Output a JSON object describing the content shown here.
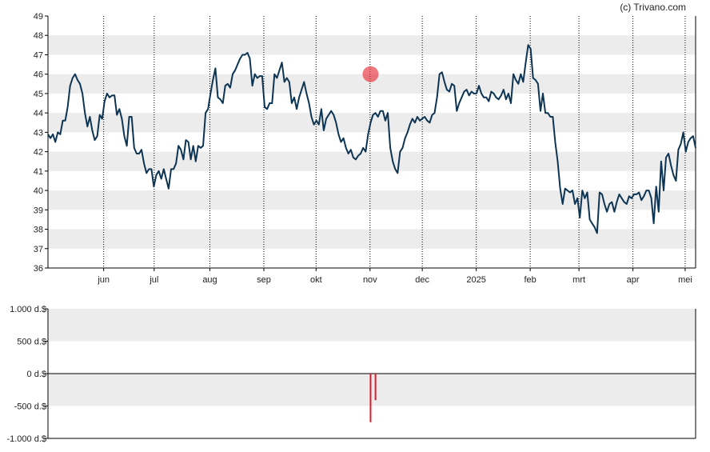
{
  "copyright": "(c) Trivano.com",
  "colors": {
    "line": "#0d3553",
    "band": "#ececec",
    "marker": "#e8303a",
    "bar": "#e01a2a",
    "axis": "#000000",
    "vgrid": "#000000"
  },
  "chart_data": [
    {
      "type": "line",
      "title": "",
      "xlabel": "",
      "ylabel": "",
      "ylim": [
        36,
        49
      ],
      "y_ticks": [
        "36",
        "37",
        "38",
        "39",
        "40",
        "41",
        "42",
        "43",
        "44",
        "45",
        "46",
        "47",
        "48",
        "49"
      ],
      "x_range_days": [
        0,
        372
      ],
      "month_ticks": [
        {
          "label": "jun",
          "day": 32
        },
        {
          "label": "jul",
          "day": 61
        },
        {
          "label": "aug",
          "day": 93
        },
        {
          "label": "sep",
          "day": 124
        },
        {
          "label": "okt",
          "day": 154
        },
        {
          "label": "nov",
          "day": 185
        },
        {
          "label": "dec",
          "day": 215
        },
        {
          "label": "2025",
          "day": 246
        },
        {
          "label": "feb",
          "day": 277
        },
        {
          "label": "mrt",
          "day": 305
        },
        {
          "label": "apr",
          "day": 336
        },
        {
          "label": "mei",
          "day": 366
        }
      ],
      "grid": "alternating horizontal bands, dotted vertical month lines",
      "series": [
        {
          "values": [
            [
              0,
              42.9
            ],
            [
              1,
              42.7
            ],
            [
              2,
              42.9
            ],
            [
              3,
              42.5
            ],
            [
              4,
              43.0
            ],
            [
              5,
              42.9
            ],
            [
              6,
              43.6
            ],
            [
              7,
              43.6
            ],
            [
              8,
              44.3
            ],
            [
              9,
              45.4
            ],
            [
              10,
              45.8
            ],
            [
              11,
              46.0
            ],
            [
              12,
              45.7
            ],
            [
              13,
              45.5
            ],
            [
              14,
              45.0
            ],
            [
              15,
              44.0
            ],
            [
              16,
              43.3
            ],
            [
              17,
              43.8
            ],
            [
              18,
              43.1
            ],
            [
              19,
              42.6
            ],
            [
              20,
              42.8
            ],
            [
              21,
              43.9
            ],
            [
              22,
              43.7
            ],
            [
              23,
              44.6
            ],
            [
              24,
              45.0
            ],
            [
              25,
              44.8
            ],
            [
              26,
              44.9
            ],
            [
              27,
              44.9
            ],
            [
              28,
              43.9
            ],
            [
              29,
              44.2
            ],
            [
              30,
              43.7
            ],
            [
              31,
              42.8
            ],
            [
              32,
              42.3
            ],
            [
              33,
              43.8
            ],
            [
              34,
              43.8
            ],
            [
              35,
              42.2
            ],
            [
              36,
              41.9
            ],
            [
              37,
              41.9
            ],
            [
              38,
              42.1
            ],
            [
              39,
              41.4
            ],
            [
              40,
              40.9
            ],
            [
              41,
              41.1
            ],
            [
              42,
              41.1
            ],
            [
              43,
              40.2
            ],
            [
              44,
              40.8
            ],
            [
              45,
              41.0
            ],
            [
              46,
              40.6
            ],
            [
              47,
              41.1
            ],
            [
              48,
              40.6
            ],
            [
              49,
              40.1
            ],
            [
              50,
              41.1
            ],
            [
              51,
              41.1
            ],
            [
              52,
              41.4
            ],
            [
              53,
              42.3
            ],
            [
              54,
              42.1
            ],
            [
              55,
              41.6
            ],
            [
              56,
              42.6
            ],
            [
              57,
              42.5
            ],
            [
              58,
              41.6
            ],
            [
              59,
              42.3
            ],
            [
              60,
              41.5
            ],
            [
              61,
              42.3
            ],
            [
              62,
              42.2
            ],
            [
              63,
              42.3
            ],
            [
              64,
              44.0
            ],
            [
              65,
              44.2
            ],
            [
              66,
              45.0
            ],
            [
              67,
              45.7
            ],
            [
              68,
              46.3
            ],
            [
              69,
              44.8
            ],
            [
              70,
              44.7
            ],
            [
              71,
              44.5
            ],
            [
              72,
              45.4
            ],
            [
              73,
              45.5
            ],
            [
              74,
              45.3
            ],
            [
              75,
              46.0
            ],
            [
              76,
              46.2
            ],
            [
              77,
              46.5
            ],
            [
              78,
              46.8
            ],
            [
              79,
              47.0
            ],
            [
              80,
              47.0
            ],
            [
              81,
              47.1
            ],
            [
              82,
              46.8
            ],
            [
              83,
              45.4
            ],
            [
              84,
              46.0
            ],
            [
              85,
              45.8
            ],
            [
              86,
              45.9
            ],
            [
              87,
              45.9
            ],
            [
              88,
              44.3
            ],
            [
              89,
              44.2
            ],
            [
              90,
              44.5
            ],
            [
              91,
              44.5
            ],
            [
              92,
              46.0
            ],
            [
              93,
              45.8
            ],
            [
              94,
              46.2
            ],
            [
              95,
              46.6
            ],
            [
              96,
              45.6
            ],
            [
              97,
              45.8
            ],
            [
              98,
              45.6
            ],
            [
              99,
              44.5
            ],
            [
              100,
              44.8
            ],
            [
              101,
              44.2
            ],
            [
              102,
              44.8
            ],
            [
              103,
              45.2
            ],
            [
              104,
              45.6
            ],
            [
              105,
              45.0
            ],
            [
              106,
              44.5
            ],
            [
              107,
              43.8
            ],
            [
              108,
              43.4
            ],
            [
              109,
              43.6
            ],
            [
              110,
              43.4
            ],
            [
              111,
              44.2
            ],
            [
              112,
              43.1
            ],
            [
              113,
              43.7
            ],
            [
              114,
              43.9
            ],
            [
              115,
              44.1
            ],
            [
              116,
              43.9
            ],
            [
              117,
              43.5
            ],
            [
              118,
              42.9
            ],
            [
              119,
              42.5
            ],
            [
              120,
              42.7
            ],
            [
              121,
              42.2
            ],
            [
              122,
              41.9
            ],
            [
              123,
              42.1
            ],
            [
              124,
              41.7
            ],
            [
              125,
              41.6
            ],
            [
              126,
              41.8
            ],
            [
              127,
              41.9
            ],
            [
              128,
              42.2
            ],
            [
              129,
              42.0
            ],
            [
              130,
              42.9
            ],
            [
              131,
              43.5
            ],
            [
              132,
              43.9
            ],
            [
              133,
              44.0
            ],
            [
              134,
              43.8
            ],
            [
              135,
              44.1
            ],
            [
              136,
              44.1
            ],
            [
              137,
              43.6
            ],
            [
              138,
              44.0
            ],
            [
              139,
              42.2
            ],
            [
              140,
              41.5
            ],
            [
              141,
              41.1
            ],
            [
              142,
              40.9
            ],
            [
              143,
              42.0
            ],
            [
              144,
              42.2
            ],
            [
              145,
              42.7
            ],
            [
              146,
              43.0
            ],
            [
              147,
              43.4
            ],
            [
              148,
              43.7
            ],
            [
              149,
              43.5
            ],
            [
              150,
              43.8
            ],
            [
              151,
              43.6
            ],
            [
              152,
              43.7
            ],
            [
              153,
              43.8
            ],
            [
              154,
              43.6
            ],
            [
              155,
              43.5
            ],
            [
              156,
              43.9
            ],
            [
              157,
              44.0
            ],
            [
              158,
              44.8
            ],
            [
              159,
              46.0
            ],
            [
              160,
              46.1
            ],
            [
              161,
              45.6
            ],
            [
              162,
              45.2
            ],
            [
              163,
              45.1
            ],
            [
              164,
              45.5
            ],
            [
              165,
              45.4
            ],
            [
              166,
              44.1
            ],
            [
              167,
              44.5
            ],
            [
              168,
              44.8
            ],
            [
              169,
              45.1
            ],
            [
              170,
              45.2
            ],
            [
              171,
              44.9
            ],
            [
              172,
              45.1
            ],
            [
              173,
              45.0
            ],
            [
              174,
              45.0
            ],
            [
              175,
              45.4
            ],
            [
              176,
              45.0
            ],
            [
              177,
              44.8
            ],
            [
              178,
              44.8
            ],
            [
              179,
              44.6
            ],
            [
              180,
              45.1
            ],
            [
              181,
              45.0
            ],
            [
              182,
              44.8
            ],
            [
              183,
              44.7
            ],
            [
              184,
              44.9
            ],
            [
              185,
              45.2
            ],
            [
              186,
              44.7
            ],
            [
              187,
              45.0
            ],
            [
              188,
              44.5
            ],
            [
              189,
              46.0
            ],
            [
              190,
              45.7
            ],
            [
              191,
              45.5
            ],
            [
              192,
              46.0
            ],
            [
              193,
              45.6
            ],
            [
              194,
              46.6
            ],
            [
              195,
              47.5
            ],
            [
              196,
              47.3
            ],
            [
              197,
              45.8
            ],
            [
              198,
              45.7
            ],
            [
              199,
              45.5
            ],
            [
              200,
              44.1
            ],
            [
              201,
              45.0
            ],
            [
              202,
              44.0
            ],
            [
              203,
              44.0
            ],
            [
              204,
              43.8
            ],
            [
              205,
              43.8
            ],
            [
              206,
              42.5
            ],
            [
              207,
              41.5
            ],
            [
              208,
              40.1
            ],
            [
              209,
              39.3
            ],
            [
              210,
              40.1
            ],
            [
              211,
              40.0
            ],
            [
              212,
              39.9
            ],
            [
              213,
              40.0
            ],
            [
              214,
              39.3
            ],
            [
              215,
              39.6
            ],
            [
              216,
              38.6
            ],
            [
              217,
              40.0
            ],
            [
              218,
              39.6
            ],
            [
              219,
              39.9
            ],
            [
              220,
              38.5
            ],
            [
              221,
              38.3
            ],
            [
              222,
              38.1
            ],
            [
              223,
              37.8
            ],
            [
              224,
              39.9
            ],
            [
              225,
              39.8
            ],
            [
              226,
              39.3
            ],
            [
              227,
              38.9
            ],
            [
              228,
              39.3
            ],
            [
              229,
              39.4
            ],
            [
              230,
              38.9
            ],
            [
              231,
              39.4
            ],
            [
              232,
              39.8
            ],
            [
              233,
              39.6
            ],
            [
              234,
              39.4
            ],
            [
              235,
              39.3
            ],
            [
              236,
              39.7
            ],
            [
              237,
              39.6
            ],
            [
              238,
              39.8
            ],
            [
              239,
              39.8
            ],
            [
              240,
              39.9
            ],
            [
              241,
              39.5
            ],
            [
              242,
              39.7
            ],
            [
              243,
              40.0
            ],
            [
              244,
              40.0
            ],
            [
              245,
              39.6
            ],
            [
              246,
              38.3
            ],
            [
              247,
              40.2
            ],
            [
              248,
              38.9
            ],
            [
              249,
              41.5
            ],
            [
              250,
              40.0
            ],
            [
              251,
              41.7
            ],
            [
              252,
              41.9
            ],
            [
              253,
              41.3
            ],
            [
              254,
              40.8
            ],
            [
              255,
              40.5
            ],
            [
              256,
              42.1
            ],
            [
              257,
              42.4
            ],
            [
              258,
              43.0
            ],
            [
              259,
              42.0
            ],
            [
              260,
              42.5
            ],
            [
              261,
              42.7
            ],
            [
              262,
              42.8
            ],
            [
              263,
              42.2
            ]
          ]
        }
      ],
      "marker": {
        "day": 131,
        "value": 46.0
      }
    },
    {
      "type": "bar",
      "title": "",
      "xlabel": "",
      "ylabel": "",
      "ylim": [
        -1000,
        1000
      ],
      "y_ticks": [
        "1.000 d.$",
        "500 d.$",
        "0 d.$",
        "-500 d.$",
        "-1.000 d.$"
      ],
      "y_tick_values": [
        1000,
        500,
        0,
        -500,
        -1000
      ],
      "bars": [
        {
          "day": 131,
          "value": -750
        },
        {
          "day": 133,
          "value": -410
        }
      ]
    }
  ]
}
